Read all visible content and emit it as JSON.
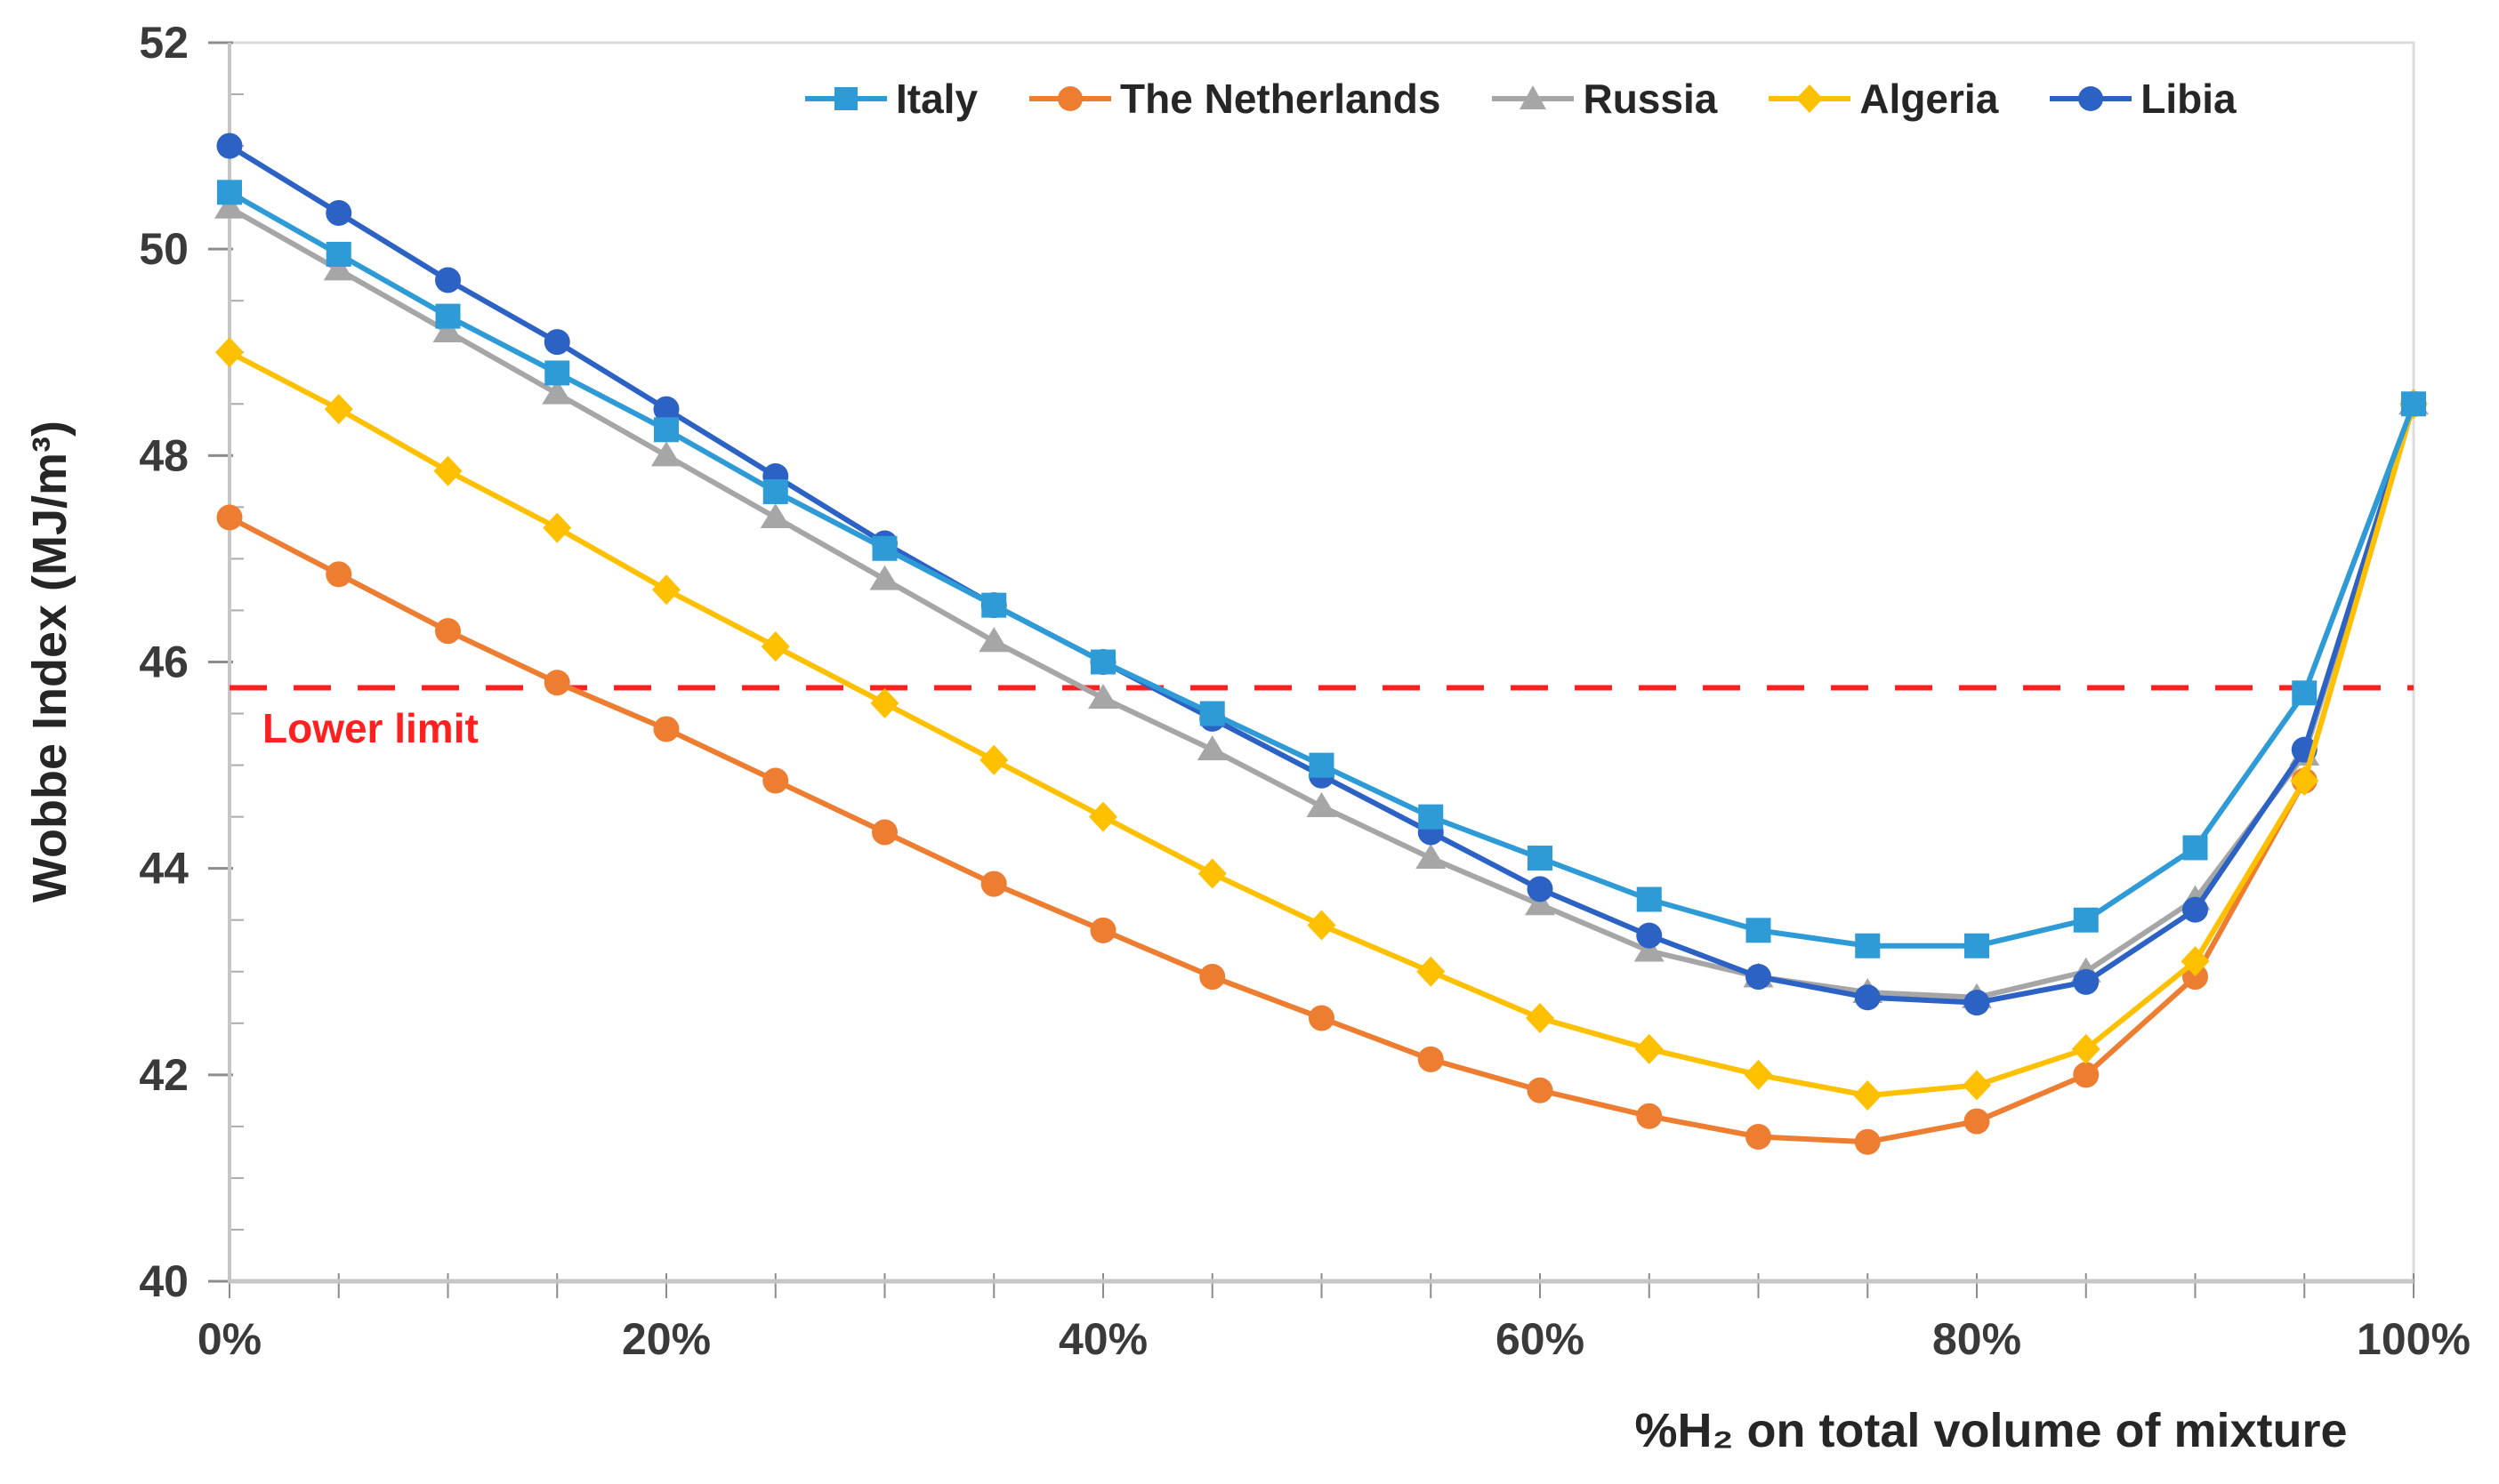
{
  "chart_data": {
    "type": "line",
    "title": "",
    "xlabel": "%H₂ on total volume of mixture",
    "ylabel": "Wobbe Index (MJ/m³)",
    "x": [
      0,
      5,
      10,
      15,
      20,
      25,
      30,
      35,
      40,
      45,
      50,
      55,
      60,
      65,
      70,
      75,
      80,
      85,
      90,
      95,
      100
    ],
    "x_tick_values": [
      0,
      20,
      40,
      60,
      80,
      100
    ],
    "x_tick_labels": [
      "0%",
      "20%",
      "40%",
      "60%",
      "80%",
      "100%"
    ],
    "x_minor_step": 5,
    "ylim": [
      40,
      52
    ],
    "y_tick_values": [
      40,
      42,
      44,
      46,
      48,
      50,
      52
    ],
    "y_minor_step": 0.5,
    "grid": "off",
    "legend_position": "top",
    "series": [
      {
        "name": "Italy",
        "color": "#2E9BD6",
        "marker": "square",
        "values": [
          50.55,
          49.95,
          49.35,
          48.8,
          48.25,
          47.65,
          47.1,
          46.55,
          46.0,
          45.5,
          45.0,
          44.5,
          44.1,
          43.7,
          43.4,
          43.25,
          43.25,
          43.5,
          44.2,
          45.7,
          48.5
        ]
      },
      {
        "name": "The Netherlands",
        "color": "#ED7D31",
        "marker": "circle",
        "values": [
          47.4,
          46.85,
          46.3,
          45.8,
          45.35,
          44.85,
          44.35,
          43.85,
          43.4,
          42.95,
          42.55,
          42.15,
          41.85,
          41.6,
          41.4,
          41.35,
          41.55,
          42.0,
          42.95,
          44.85,
          48.5
        ]
      },
      {
        "name": "Russia",
        "color": "#A6A6A6",
        "marker": "triangle",
        "values": [
          50.4,
          49.8,
          49.2,
          48.6,
          48.0,
          47.4,
          46.8,
          46.2,
          45.65,
          45.15,
          44.6,
          44.1,
          43.65,
          43.2,
          42.95,
          42.8,
          42.75,
          43.0,
          43.7,
          45.1,
          48.5
        ]
      },
      {
        "name": "Algeria",
        "color": "#FFC000",
        "marker": "diamond",
        "values": [
          49.0,
          48.45,
          47.85,
          47.3,
          46.7,
          46.15,
          45.6,
          45.05,
          44.5,
          43.95,
          43.45,
          43.0,
          42.55,
          42.25,
          42.0,
          41.8,
          41.9,
          42.25,
          43.1,
          44.85,
          48.5
        ]
      },
      {
        "name": "Libia",
        "color": "#2D62C5",
        "marker": "circle",
        "values": [
          51.0,
          50.35,
          49.7,
          49.1,
          48.45,
          47.8,
          47.15,
          46.55,
          46.0,
          45.45,
          44.9,
          44.35,
          43.8,
          43.35,
          42.95,
          42.75,
          42.7,
          42.9,
          43.6,
          45.15,
          48.5
        ]
      }
    ],
    "draw_order": [
      2,
      4,
      1,
      3,
      0
    ],
    "annotation": {
      "label": "Lower limit",
      "value": 45.75,
      "color": "#FF2020",
      "style": "dashed"
    },
    "axis_colors": {
      "axis_line": "#C6C6C6",
      "tick": "#8C8C8C",
      "border": "#DCDCDC",
      "tick_text": "#3A3A3A"
    }
  }
}
